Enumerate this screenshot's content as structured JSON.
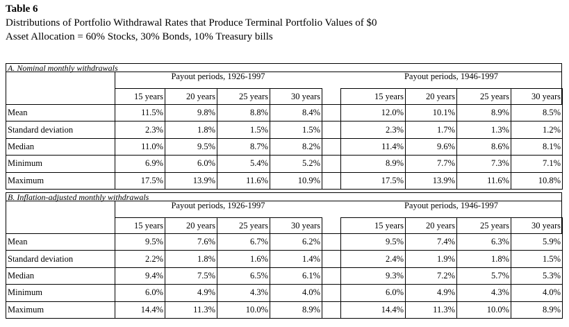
{
  "header": {
    "title": "Table 6",
    "subtitle": [
      "Distributions of Portfolio Withdrawal Rates that Produce Terminal Portfolio Values of $0",
      "Asset Allocation = 60% Stocks, 30% Bonds, 10% Treasury bills"
    ]
  },
  "table": {
    "sections": [
      {
        "caption": "A. Nominal monthly withdrawals",
        "groups": [
          "Payout periods, 1926-1997",
          "Payout periods, 1946-1997"
        ],
        "columns": [
          "15 years",
          "20 years",
          "25 years",
          "30 years",
          "15 years",
          "20 years",
          "25 years",
          "30 years"
        ],
        "rows": [
          {
            "label": "Mean",
            "values": [
              "11.5%",
              "9.8%",
              "8.8%",
              "8.4%",
              "12.0%",
              "10.1%",
              "8.9%",
              "8.5%"
            ]
          },
          {
            "label": "Standard deviation",
            "values": [
              "2.3%",
              "1.8%",
              "1.5%",
              "1.5%",
              "2.3%",
              "1.7%",
              "1.3%",
              "1.2%"
            ]
          },
          {
            "label": "Median",
            "values": [
              "11.0%",
              "9.5%",
              "8.7%",
              "8.2%",
              "11.4%",
              "9.6%",
              "8.6%",
              "8.1%"
            ]
          },
          {
            "label": "Minimum",
            "values": [
              "6.9%",
              "6.0%",
              "5.4%",
              "5.2%",
              "8.9%",
              "7.7%",
              "7.3%",
              "7.1%"
            ]
          },
          {
            "label": "Maximum",
            "values": [
              "17.5%",
              "13.9%",
              "11.6%",
              "10.9%",
              "17.5%",
              "13.9%",
              "11.6%",
              "10.8%"
            ]
          }
        ]
      },
      {
        "caption": "B. Inflation-adjusted monthly withdrawals",
        "groups": [
          "Payout periods, 1926-1997",
          "Payout periods, 1946-1997"
        ],
        "columns": [
          "15 years",
          "20 years",
          "25 years",
          "30 years",
          "15 years",
          "20 years",
          "25 years",
          "30 years"
        ],
        "rows": [
          {
            "label": "Mean",
            "values": [
              "9.5%",
              "7.6%",
              "6.7%",
              "6.2%",
              "9.5%",
              "7.4%",
              "6.3%",
              "5.9%"
            ]
          },
          {
            "label": "Standard deviation",
            "values": [
              "2.2%",
              "1.8%",
              "1.6%",
              "1.4%",
              "2.4%",
              "1.9%",
              "1.8%",
              "1.5%"
            ]
          },
          {
            "label": "Median",
            "values": [
              "9.4%",
              "7.5%",
              "6.5%",
              "6.1%",
              "9.3%",
              "7.2%",
              "5.7%",
              "5.3%"
            ]
          },
          {
            "label": "Minimum",
            "values": [
              "6.0%",
              "4.9%",
              "4.3%",
              "4.0%",
              "6.0%",
              "4.9%",
              "4.3%",
              "4.0%"
            ]
          },
          {
            "label": "Maximum",
            "values": [
              "14.4%",
              "11.3%",
              "10.0%",
              "8.9%",
              "14.4%",
              "11.3%",
              "10.0%",
              "8.9%"
            ]
          }
        ]
      }
    ]
  }
}
